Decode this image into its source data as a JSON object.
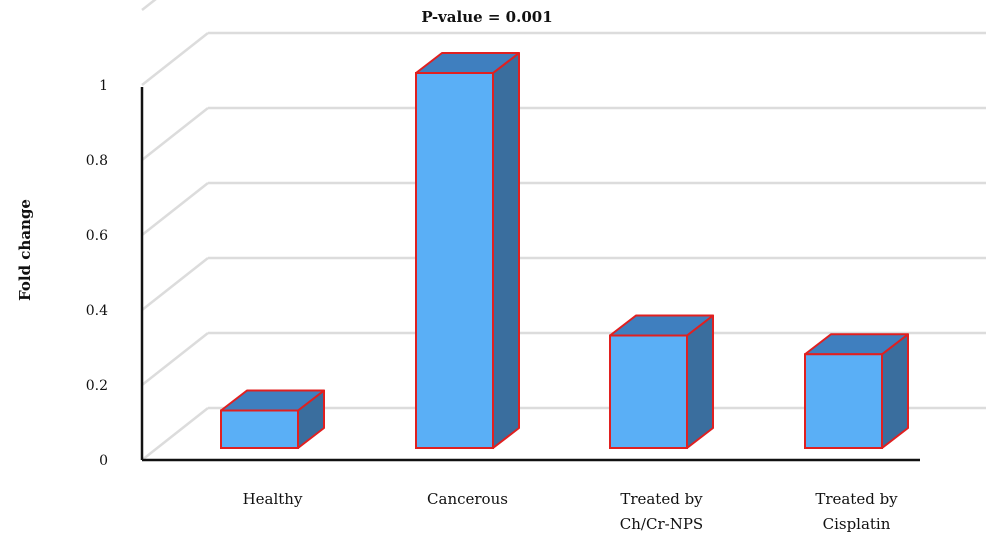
{
  "chart_data": {
    "type": "bar",
    "title": "P-value = 0.001",
    "xlabel": "",
    "ylabel": "Fold change",
    "categories": [
      "Healthy",
      "Cancerous",
      "Treated by Ch/Cr-NPS",
      "Treated by Cisplatin"
    ],
    "category_lines": [
      [
        "Healthy"
      ],
      [
        "Cancerous"
      ],
      [
        "Treated by",
        "Ch/Cr-NPS"
      ],
      [
        "Treated by",
        "Cisplatin"
      ]
    ],
    "values": [
      0.1,
      1.0,
      0.3,
      0.25
    ],
    "ylim": [
      0,
      1
    ],
    "y_ticks": [
      "0",
      "0.2",
      "0.4",
      "0.6",
      "0.8",
      "1"
    ],
    "grid": true,
    "legend": "none",
    "colors": {
      "bar_front": "#5aaff6",
      "bar_top": "#3f7fbf",
      "bar_side": "#3a6e9e",
      "bar_edge": "#e02020",
      "grid": "#dcdcdc",
      "axis": "#111111"
    }
  }
}
